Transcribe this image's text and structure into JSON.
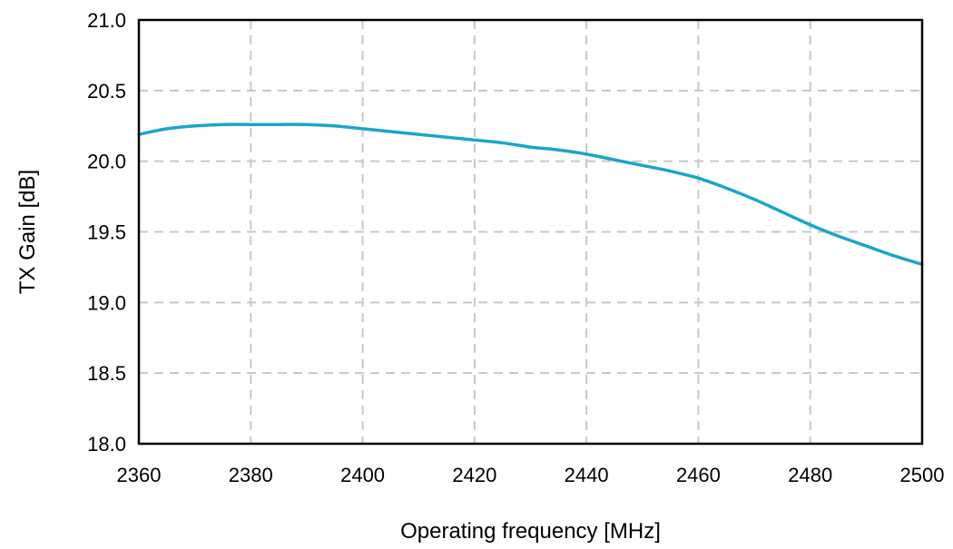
{
  "chart_data": {
    "type": "line",
    "title": "",
    "xlabel": "Operating frequency [MHz]",
    "ylabel": "TX Gain [dB]",
    "xlim": [
      2360,
      2500
    ],
    "ylim": [
      18.0,
      21.0
    ],
    "x_ticks": [
      2360,
      2380,
      2400,
      2420,
      2440,
      2460,
      2480,
      2500
    ],
    "x_tick_labels": [
      "2360",
      "2380",
      "2400",
      "2420",
      "2440",
      "2460",
      "2480",
      "2500"
    ],
    "y_ticks": [
      18.0,
      18.5,
      19.0,
      19.5,
      20.0,
      20.5,
      21.0
    ],
    "y_tick_labels": [
      "18.0",
      "18.5",
      "19.0",
      "19.5",
      "20.0",
      "20.5",
      "21.0"
    ],
    "grid": true,
    "legend": "none",
    "series": [
      {
        "color": "#1aa6c8",
        "x": [
          2360,
          2365,
          2370,
          2375,
          2380,
          2385,
          2390,
          2395,
          2400,
          2405,
          2410,
          2415,
          2420,
          2425,
          2430,
          2435,
          2440,
          2445,
          2450,
          2455,
          2460,
          2465,
          2470,
          2475,
          2480,
          2485,
          2490,
          2495,
          2500
        ],
        "y": [
          20.19,
          20.23,
          20.25,
          20.26,
          20.26,
          20.26,
          20.26,
          20.25,
          20.23,
          20.21,
          20.19,
          20.17,
          20.15,
          20.13,
          20.1,
          20.08,
          20.05,
          20.01,
          19.97,
          19.93,
          19.88,
          19.81,
          19.73,
          19.64,
          19.55,
          19.47,
          19.4,
          19.33,
          19.27
        ]
      }
    ]
  }
}
